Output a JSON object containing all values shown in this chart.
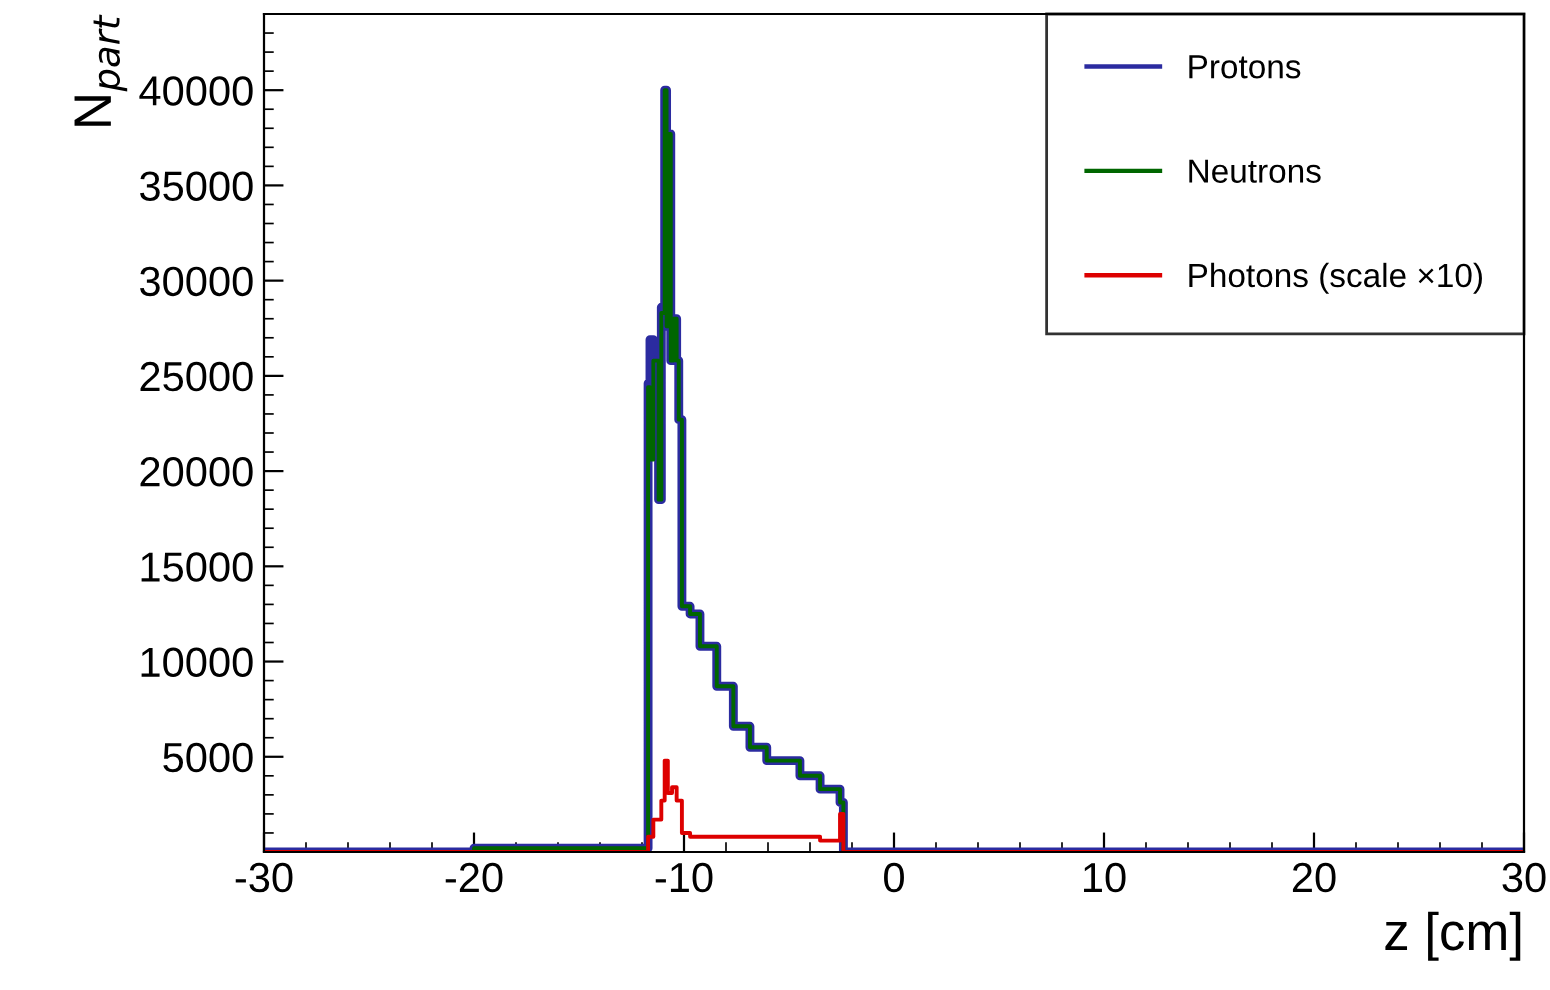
{
  "chart_data": {
    "type": "step",
    "xlabel": "z [cm]",
    "ylabel": "N$_{part}$",
    "xlim": [
      -30,
      30
    ],
    "ylim": [
      0,
      44000
    ],
    "xticks": [
      -30,
      -20,
      -10,
      0,
      10,
      20,
      30
    ],
    "yticks": [
      5000,
      10000,
      15000,
      20000,
      25000,
      30000,
      35000,
      40000
    ],
    "grid": false,
    "legend": "top right",
    "series": [
      {
        "name": "Protons",
        "color": "#2b2ba0",
        "x": [
          -30,
          -20,
          -11.71,
          -11.62,
          -11.46,
          -11.21,
          -11.08,
          -10.92,
          -10.83,
          -10.73,
          -10.63,
          -10.51,
          -10.35,
          -10.25,
          -10.1,
          -9.71,
          -9.24,
          -8.44,
          -7.65,
          -6.86,
          -6.06,
          -4.48,
          -3.52,
          -2.57,
          -2.41,
          30
        ],
        "values": [
          0,
          200,
          24600,
          26900,
          25800,
          18500,
          28600,
          40000,
          27600,
          37700,
          25800,
          28000,
          25800,
          22700,
          12900,
          12500,
          10800,
          8700,
          6600,
          5500,
          4800,
          4000,
          3300,
          2600,
          0,
          0
        ]
      },
      {
        "name": "Neutrons",
        "color": "#006600",
        "x": [
          -30,
          -20,
          -11.71,
          -11.62,
          -11.46,
          -11.21,
          -11.08,
          -10.92,
          -10.83,
          -10.73,
          -10.63,
          -10.51,
          -10.35,
          -10.25,
          -10.1,
          -9.71,
          -9.24,
          -8.44,
          -7.65,
          -6.86,
          -6.06,
          -4.48,
          -3.52,
          -2.57,
          -2.41,
          30
        ],
        "values": [
          0,
          200,
          24400,
          20600,
          25800,
          18500,
          28300,
          40000,
          27600,
          37700,
          25800,
          28000,
          25800,
          22700,
          12900,
          12500,
          10800,
          8700,
          6600,
          5500,
          4800,
          4000,
          3300,
          2600,
          0,
          0
        ]
      },
      {
        "name": "Photons (scale ×10)",
        "color": "#dd0000",
        "x": [
          -30,
          -11.71,
          -11.46,
          -11.08,
          -10.92,
          -10.77,
          -10.57,
          -10.35,
          -10.1,
          -9.71,
          -3.52,
          -2.57,
          -2.41,
          30
        ],
        "values": [
          0,
          800,
          1700,
          2700,
          4800,
          3100,
          3400,
          2700,
          1000,
          800,
          600,
          2000,
          0,
          0
        ]
      }
    ]
  }
}
